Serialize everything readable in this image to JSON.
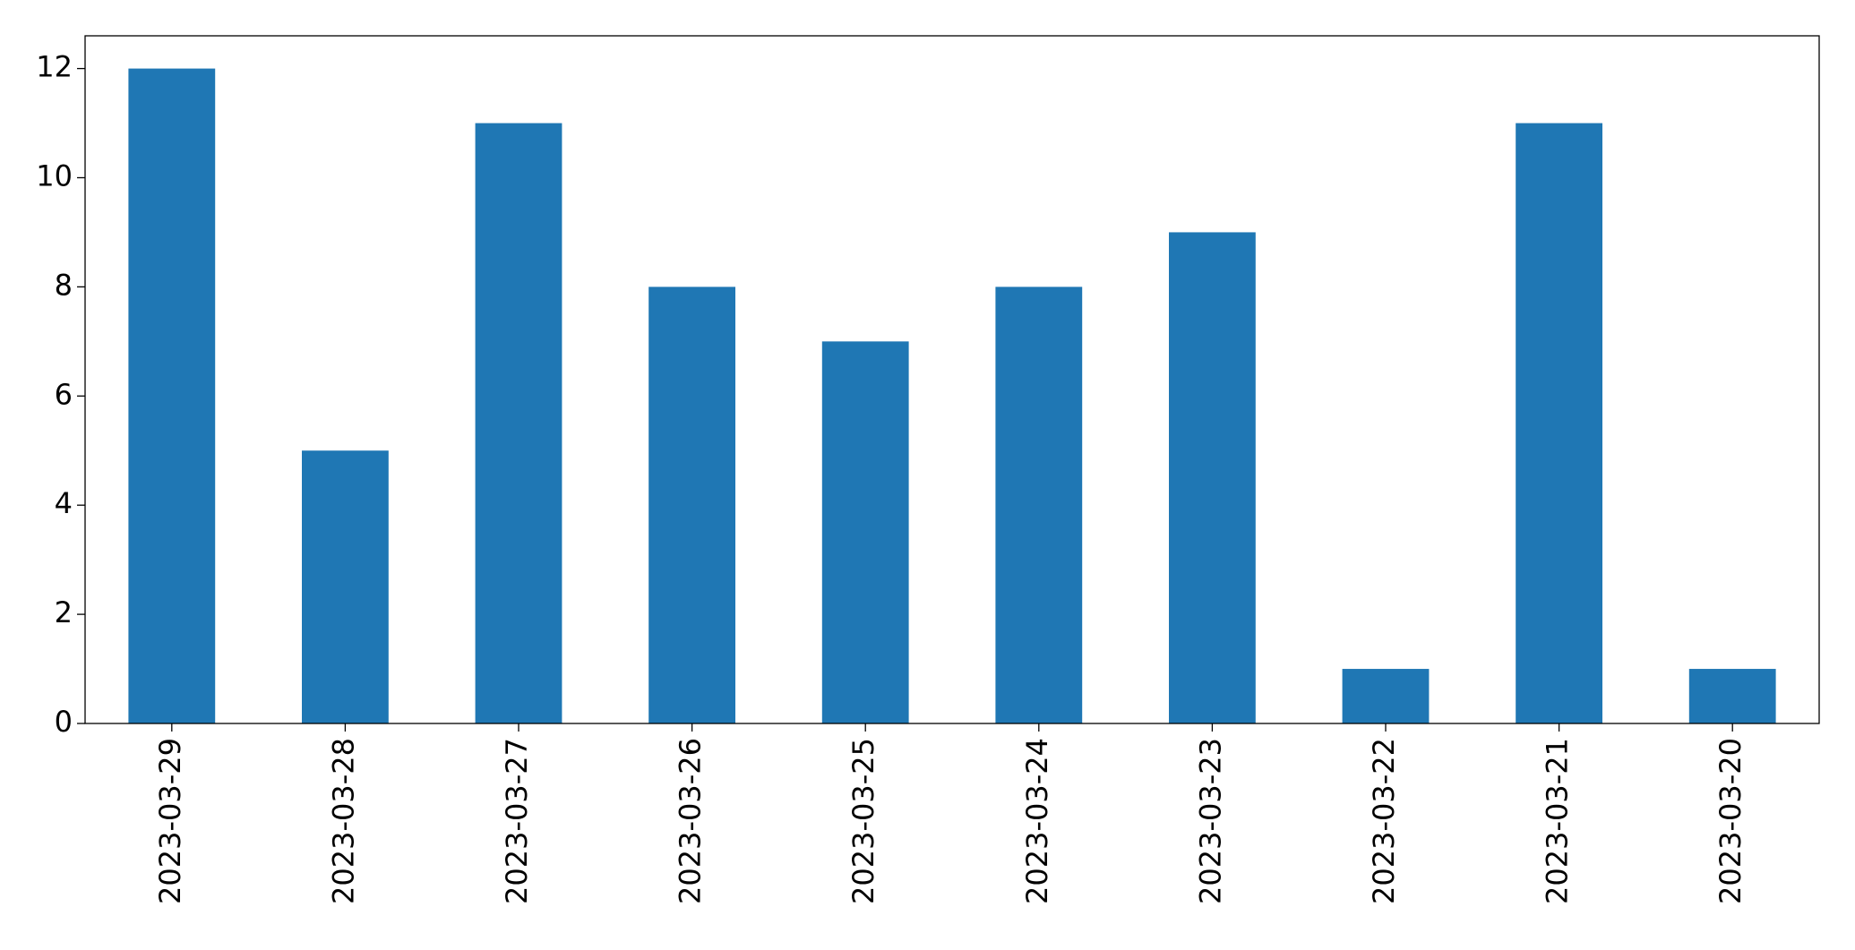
{
  "chart_data": {
    "type": "bar",
    "categories": [
      "2023-03-29",
      "2023-03-28",
      "2023-03-27",
      "2023-03-26",
      "2023-03-25",
      "2023-03-24",
      "2023-03-23",
      "2023-03-22",
      "2023-03-21",
      "2023-03-20"
    ],
    "values": [
      12,
      5,
      11,
      8,
      7,
      8,
      9,
      1,
      11,
      1
    ],
    "color": "#1f77b4",
    "ylim": [
      0,
      12.6
    ],
    "yticks": [
      0,
      2,
      4,
      6,
      8,
      10,
      12
    ],
    "grid": false
  }
}
